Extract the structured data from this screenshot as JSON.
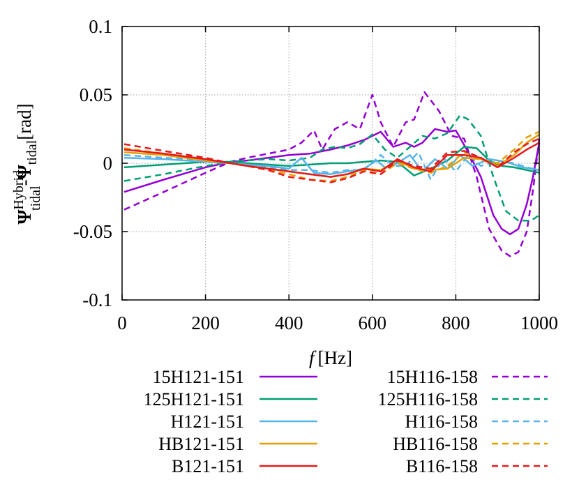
{
  "chart_data": {
    "type": "line",
    "xlabel": {
      "symbol": "f",
      "unit": "[Hz]"
    },
    "ylabel": {
      "psi_main": "Ψ",
      "sub1": "tidal",
      "sup1": "Hybrid",
      "dash": "-",
      "psi_second": "Ψ",
      "sub2": "tidal",
      "unit": "[rad]"
    },
    "xlim": [
      0,
      1000
    ],
    "ylim": [
      -0.1,
      0.1
    ],
    "x_ticks": [
      "0",
      "200",
      "400",
      "600",
      "800",
      "1000"
    ],
    "y_ticks": [
      "0.1",
      "0.05",
      "0",
      "-0.05",
      "-0.1"
    ],
    "grid": true,
    "legend_placement": "below",
    "series": [
      {
        "name": "15H121-151",
        "color": "#9400d3",
        "dash": "solid",
        "points": [
          [
            5,
            -0.021
          ],
          [
            100,
            -0.012
          ],
          [
            200,
            -0.003
          ],
          [
            260,
            0.001
          ],
          [
            300,
            0.002
          ],
          [
            350,
            0.004
          ],
          [
            400,
            0.006
          ],
          [
            450,
            0.007
          ],
          [
            500,
            0.01
          ],
          [
            540,
            0.013
          ],
          [
            580,
            0.017
          ],
          [
            620,
            0.023
          ],
          [
            650,
            0.012
          ],
          [
            680,
            0.015
          ],
          [
            700,
            0.012
          ],
          [
            720,
            0.015
          ],
          [
            750,
            0.025
          ],
          [
            780,
            0.023
          ],
          [
            800,
            0.024
          ],
          [
            830,
            0.008
          ],
          [
            860,
            -0.01
          ],
          [
            890,
            -0.038
          ],
          [
            910,
            -0.048
          ],
          [
            930,
            -0.052
          ],
          [
            950,
            -0.048
          ],
          [
            970,
            -0.03
          ],
          [
            985,
            -0.01
          ],
          [
            1000,
            0.015
          ]
        ]
      },
      {
        "name": "15H116-158",
        "color": "#9400d3",
        "dash": "dashed",
        "points": [
          [
            5,
            -0.034
          ],
          [
            100,
            -0.021
          ],
          [
            200,
            -0.007
          ],
          [
            260,
            0.001
          ],
          [
            300,
            0.004
          ],
          [
            350,
            0.007
          ],
          [
            400,
            0.01
          ],
          [
            430,
            0.015
          ],
          [
            460,
            0.024
          ],
          [
            480,
            0.01
          ],
          [
            510,
            0.025
          ],
          [
            540,
            0.03
          ],
          [
            570,
            0.025
          ],
          [
            600,
            0.05
          ],
          [
            620,
            0.03
          ],
          [
            650,
            0.012
          ],
          [
            680,
            0.03
          ],
          [
            700,
            0.032
          ],
          [
            725,
            0.052
          ],
          [
            760,
            0.038
          ],
          [
            790,
            0.02
          ],
          [
            820,
            0.018
          ],
          [
            850,
            -0.01
          ],
          [
            880,
            -0.048
          ],
          [
            910,
            -0.064
          ],
          [
            930,
            -0.068
          ],
          [
            950,
            -0.065
          ],
          [
            970,
            -0.05
          ],
          [
            985,
            -0.02
          ],
          [
            1000,
            0.018
          ]
        ]
      },
      {
        "name": "125H121-151",
        "color": "#009e73",
        "dash": "solid",
        "points": [
          [
            5,
            -0.003
          ],
          [
            100,
            -0.001
          ],
          [
            200,
            0.001
          ],
          [
            260,
            0.001
          ],
          [
            300,
            0
          ],
          [
            350,
            -0.001
          ],
          [
            400,
            -0.002
          ],
          [
            450,
            -0.001
          ],
          [
            500,
            0
          ],
          [
            540,
            0
          ],
          [
            580,
            0.001
          ],
          [
            620,
            0.002
          ],
          [
            660,
            0.001
          ],
          [
            700,
            -0.009
          ],
          [
            740,
            -0.004
          ],
          [
            780,
            0.002
          ],
          [
            820,
            0.012
          ],
          [
            850,
            0.011
          ],
          [
            880,
            0.002
          ],
          [
            910,
            -0.002
          ],
          [
            940,
            -0.003
          ],
          [
            970,
            -0.005
          ],
          [
            1000,
            -0.007
          ]
        ]
      },
      {
        "name": "125H116-158",
        "color": "#009e73",
        "dash": "dashed",
        "points": [
          [
            5,
            -0.013
          ],
          [
            100,
            -0.008
          ],
          [
            200,
            -0.002
          ],
          [
            260,
            0.001
          ],
          [
            300,
            0.002
          ],
          [
            350,
            0.003
          ],
          [
            400,
            0.002
          ],
          [
            450,
            0.004
          ],
          [
            480,
            0.01
          ],
          [
            510,
            0.012
          ],
          [
            540,
            0.011
          ],
          [
            570,
            0.014
          ],
          [
            600,
            0.021
          ],
          [
            630,
            0.01
          ],
          [
            660,
            0.004
          ],
          [
            690,
            0.012
          ],
          [
            720,
            0.02
          ],
          [
            750,
            0.018
          ],
          [
            780,
            0.022
          ],
          [
            810,
            0.035
          ],
          [
            830,
            0.032
          ],
          [
            860,
            0.02
          ],
          [
            890,
            -0.01
          ],
          [
            920,
            -0.035
          ],
          [
            950,
            -0.042
          ],
          [
            980,
            -0.042
          ],
          [
            1000,
            -0.038
          ]
        ]
      },
      {
        "name": "H121-151",
        "color": "#56b4e9",
        "dash": "solid",
        "points": [
          [
            5,
            0.004
          ],
          [
            100,
            0.003
          ],
          [
            200,
            0.001
          ],
          [
            260,
            0
          ],
          [
            300,
            -0.001
          ],
          [
            350,
            -0.002
          ],
          [
            400,
            -0.004
          ],
          [
            430,
            0.004
          ],
          [
            460,
            -0.007
          ],
          [
            500,
            -0.008
          ],
          [
            540,
            -0.006
          ],
          [
            580,
            -0.004
          ],
          [
            610,
            0.002
          ],
          [
            630,
            -0.003
          ],
          [
            660,
            0
          ],
          [
            690,
            0.006
          ],
          [
            720,
            -0.006
          ],
          [
            750,
            0.003
          ],
          [
            780,
            -0.004
          ],
          [
            810,
            0.006
          ],
          [
            840,
            -0.002
          ],
          [
            880,
            0.003
          ],
          [
            920,
            0.001
          ],
          [
            960,
            -0.003
          ],
          [
            1000,
            -0.005
          ]
        ]
      },
      {
        "name": "H116-158",
        "color": "#56b4e9",
        "dash": "dashed",
        "points": [
          [
            5,
            0.006
          ],
          [
            100,
            0.004
          ],
          [
            200,
            0.002
          ],
          [
            260,
            0
          ],
          [
            300,
            -0.001
          ],
          [
            350,
            -0.003
          ],
          [
            400,
            -0.005
          ],
          [
            450,
            -0.005
          ],
          [
            500,
            -0.007
          ],
          [
            540,
            -0.005
          ],
          [
            580,
            -0.005
          ],
          [
            620,
            0.006
          ],
          [
            650,
            -0.002
          ],
          [
            680,
            -0.002
          ],
          [
            710,
            0.008
          ],
          [
            740,
            -0.012
          ],
          [
            770,
            0.004
          ],
          [
            800,
            -0.006
          ],
          [
            830,
            0.006
          ],
          [
            860,
            -0.002
          ],
          [
            900,
            0.002
          ],
          [
            940,
            0
          ],
          [
            970,
            -0.003
          ],
          [
            1000,
            -0.005
          ]
        ]
      },
      {
        "name": "HB121-151",
        "color": "#e69f00",
        "dash": "solid",
        "points": [
          [
            5,
            0.008
          ],
          [
            100,
            0.006
          ],
          [
            200,
            0.002
          ],
          [
            260,
            0
          ],
          [
            300,
            -0.002
          ],
          [
            350,
            -0.004
          ],
          [
            400,
            -0.006
          ],
          [
            450,
            -0.008
          ],
          [
            500,
            -0.01
          ],
          [
            540,
            -0.008
          ],
          [
            580,
            -0.004
          ],
          [
            620,
            -0.005
          ],
          [
            660,
            0.002
          ],
          [
            700,
            -0.004
          ],
          [
            740,
            -0.005
          ],
          [
            780,
            -0.004
          ],
          [
            820,
            0.004
          ],
          [
            860,
            0.003
          ],
          [
            900,
            -0.002
          ],
          [
            940,
            0.006
          ],
          [
            970,
            0.015
          ],
          [
            1000,
            0.021
          ]
        ]
      },
      {
        "name": "HB116-158",
        "color": "#e69f00",
        "dash": "dashed",
        "points": [
          [
            5,
            0.011
          ],
          [
            100,
            0.007
          ],
          [
            200,
            0.003
          ],
          [
            260,
            0
          ],
          [
            300,
            -0.002
          ],
          [
            350,
            -0.005
          ],
          [
            400,
            -0.008
          ],
          [
            450,
            -0.012
          ],
          [
            500,
            -0.013
          ],
          [
            540,
            -0.01
          ],
          [
            580,
            -0.005
          ],
          [
            620,
            -0.008
          ],
          [
            660,
            0
          ],
          [
            700,
            -0.004
          ],
          [
            740,
            -0.007
          ],
          [
            780,
            -0.002
          ],
          [
            820,
            0.008
          ],
          [
            860,
            0.003
          ],
          [
            900,
            0
          ],
          [
            940,
            0.01
          ],
          [
            970,
            0.019
          ],
          [
            1000,
            0.023
          ]
        ]
      },
      {
        "name": "B121-151",
        "color": "#e41a1c",
        "dash": "solid",
        "points": [
          [
            5,
            0.01
          ],
          [
            100,
            0.007
          ],
          [
            200,
            0.003
          ],
          [
            260,
            0
          ],
          [
            300,
            -0.002
          ],
          [
            350,
            -0.004
          ],
          [
            400,
            -0.006
          ],
          [
            450,
            -0.008
          ],
          [
            500,
            -0.01
          ],
          [
            540,
            -0.008
          ],
          [
            580,
            -0.004
          ],
          [
            620,
            -0.006
          ],
          [
            660,
            0.003
          ],
          [
            700,
            -0.003
          ],
          [
            740,
            -0.006
          ],
          [
            780,
            0.006
          ],
          [
            820,
            0.006
          ],
          [
            860,
            0.004
          ],
          [
            900,
            -0.003
          ],
          [
            940,
            0.004
          ],
          [
            970,
            0.01
          ],
          [
            1000,
            0.015
          ]
        ]
      },
      {
        "name": "B116-158",
        "color": "#e41a1c",
        "dash": "dashed",
        "points": [
          [
            5,
            0.014
          ],
          [
            100,
            0.009
          ],
          [
            200,
            0.004
          ],
          [
            260,
            0
          ],
          [
            300,
            -0.002
          ],
          [
            350,
            -0.005
          ],
          [
            400,
            -0.01
          ],
          [
            450,
            -0.012
          ],
          [
            500,
            -0.014
          ],
          [
            540,
            -0.011
          ],
          [
            580,
            -0.006
          ],
          [
            620,
            -0.008
          ],
          [
            660,
            0.002
          ],
          [
            700,
            -0.002
          ],
          [
            740,
            -0.004
          ],
          [
            780,
            0.008
          ],
          [
            820,
            0.009
          ],
          [
            860,
            0.004
          ],
          [
            900,
            -0.003
          ],
          [
            940,
            0.008
          ],
          [
            970,
            0.014
          ],
          [
            1000,
            0.018
          ]
        ]
      }
    ]
  }
}
